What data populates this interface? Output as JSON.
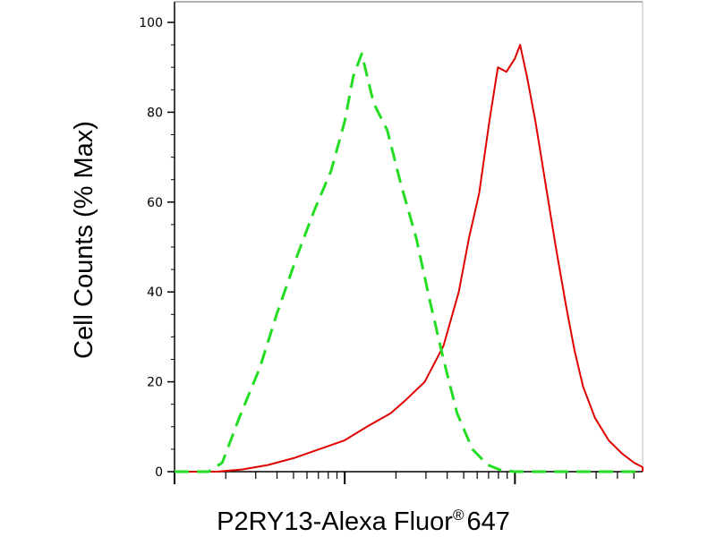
{
  "chart_data": {
    "type": "line",
    "title": "",
    "xlabel": "P2RY13-Alexa Fluor",
    "xlabel_superscript": "®",
    "xlabel_suffix": "647",
    "ylabel": "Cell Counts (% Max)",
    "xscale": "log",
    "ylim": [
      0,
      100
    ],
    "yticks": [
      0,
      20,
      40,
      60,
      80,
      100
    ],
    "grid": false,
    "legend": "none",
    "series": [
      {
        "color": "#e00000",
        "style": "solid",
        "x": [
          0,
          0.1,
          0.25,
          0.4,
          0.55,
          0.7,
          0.85,
          1.0,
          1.13,
          1.27,
          1.36,
          1.47,
          1.58,
          1.67,
          1.73,
          1.79,
          1.85,
          1.9,
          1.95,
          2.0,
          2.03,
          2.07,
          2.12,
          2.18,
          2.24,
          2.3,
          2.35,
          2.4,
          2.47,
          2.55,
          2.63,
          2.7,
          2.8,
          2.9,
          3.0,
          3.2,
          3.5,
          3.8,
          4.1
        ],
        "y": [
          0,
          0,
          0,
          0.5,
          1.5,
          3,
          5,
          7,
          10,
          13,
          16,
          20,
          28,
          40,
          52,
          62,
          78,
          90,
          89,
          92,
          95,
          88,
          78,
          64,
          50,
          37,
          27,
          19,
          12,
          7,
          4,
          2,
          1,
          0.4,
          0.2,
          0,
          0,
          0,
          0
        ]
      },
      {
        "color": "#22dd22",
        "style": "dashed",
        "x": [
          0,
          0.12,
          0.2,
          0.28,
          0.38,
          0.5,
          0.6,
          0.72,
          0.82,
          0.92,
          1.0,
          1.05,
          1.1,
          1.17,
          1.25,
          1.33,
          1.42,
          1.5,
          1.58,
          1.66,
          1.75,
          1.84,
          1.92,
          2.0,
          2.1,
          2.25,
          2.5,
          3.0,
          4.1
        ],
        "y": [
          0,
          0,
          0,
          2,
          12,
          23,
          35,
          48,
          58,
          67,
          78,
          88,
          93,
          82,
          76,
          64,
          52,
          38,
          25,
          13,
          5,
          1.5,
          0.3,
          0,
          0,
          0,
          0,
          0,
          0
        ]
      }
    ]
  }
}
